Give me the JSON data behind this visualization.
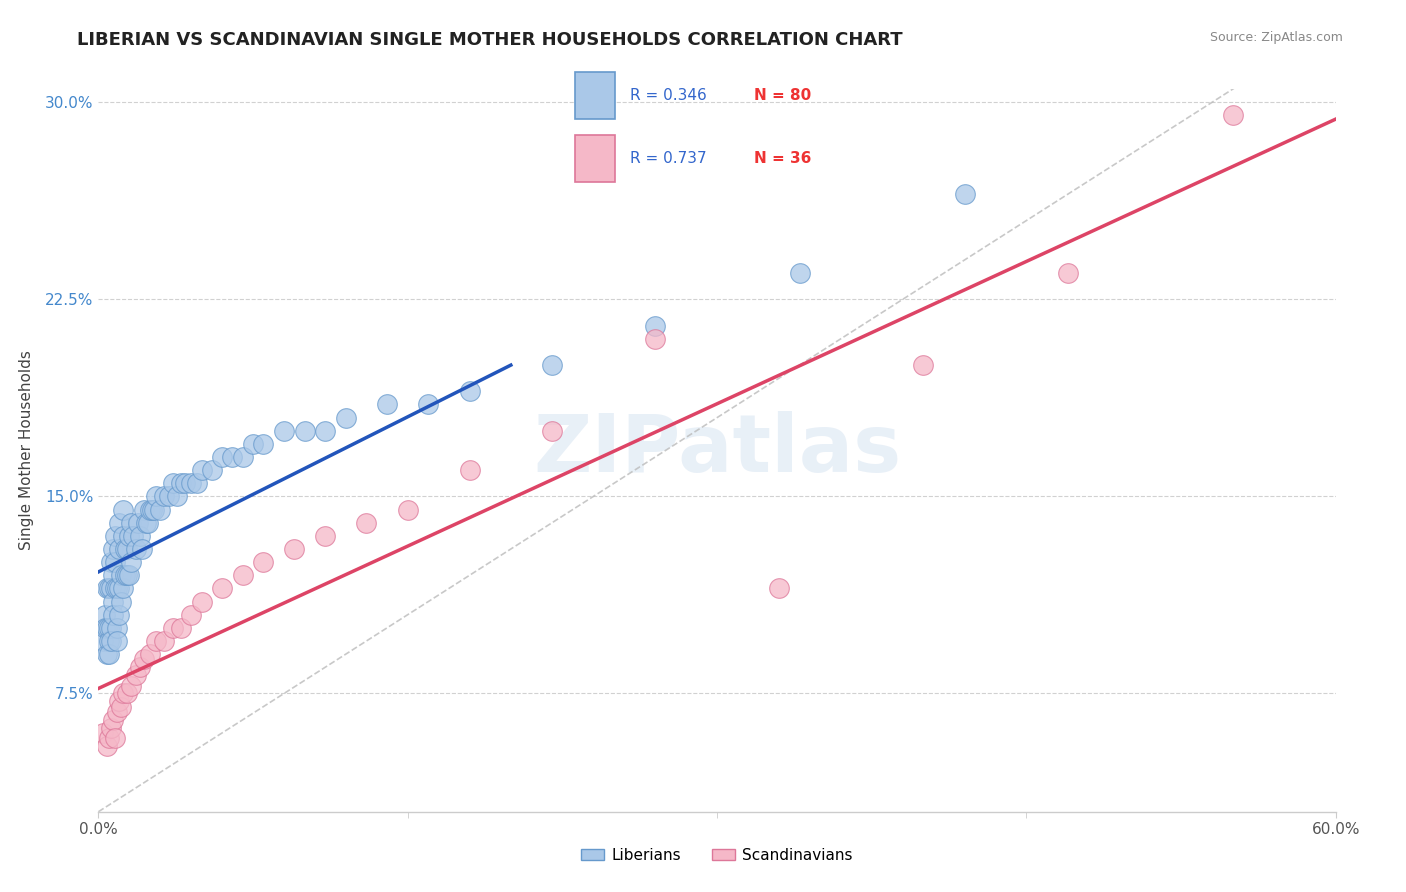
{
  "title": "LIBERIAN VS SCANDINAVIAN SINGLE MOTHER HOUSEHOLDS CORRELATION CHART",
  "source": "Source: ZipAtlas.com",
  "ylabel": "Single Mother Households",
  "xlim": [
    0.0,
    0.6
  ],
  "ylim": [
    0.03,
    0.305
  ],
  "xticks": [
    0.0,
    0.6
  ],
  "xtick_labels": [
    "0.0%",
    "60.0%"
  ],
  "yticks": [
    0.075,
    0.15,
    0.225,
    0.3
  ],
  "ytick_labels": [
    "7.5%",
    "15.0%",
    "22.5%",
    "30.0%"
  ],
  "grid_color": "#cccccc",
  "background_color": "#ffffff",
  "watermark": "ZIPatlas",
  "liberian_color": "#aac8e8",
  "liberian_edge": "#6699cc",
  "scandinavian_color": "#f5b8c8",
  "scandinavian_edge": "#dd7799",
  "liberian_line_color": "#2255bb",
  "scandinavian_line_color": "#dd4466",
  "R_liberian": 0.346,
  "N_liberian": 80,
  "R_scandinavian": 0.737,
  "N_scandinavian": 36,
  "liberian_x": [
    0.002,
    0.003,
    0.003,
    0.004,
    0.004,
    0.004,
    0.005,
    0.005,
    0.005,
    0.005,
    0.006,
    0.006,
    0.006,
    0.006,
    0.007,
    0.007,
    0.007,
    0.007,
    0.008,
    0.008,
    0.008,
    0.009,
    0.009,
    0.009,
    0.01,
    0.01,
    0.01,
    0.01,
    0.011,
    0.011,
    0.012,
    0.012,
    0.012,
    0.013,
    0.013,
    0.014,
    0.014,
    0.015,
    0.015,
    0.016,
    0.016,
    0.017,
    0.018,
    0.019,
    0.02,
    0.021,
    0.022,
    0.023,
    0.024,
    0.025,
    0.026,
    0.027,
    0.028,
    0.03,
    0.032,
    0.034,
    0.036,
    0.038,
    0.04,
    0.042,
    0.045,
    0.048,
    0.05,
    0.055,
    0.06,
    0.065,
    0.07,
    0.075,
    0.08,
    0.09,
    0.1,
    0.11,
    0.12,
    0.14,
    0.16,
    0.18,
    0.22,
    0.27,
    0.34,
    0.42
  ],
  "liberian_y": [
    0.095,
    0.105,
    0.1,
    0.115,
    0.1,
    0.09,
    0.115,
    0.1,
    0.095,
    0.09,
    0.125,
    0.115,
    0.1,
    0.095,
    0.13,
    0.12,
    0.11,
    0.105,
    0.135,
    0.125,
    0.115,
    0.115,
    0.1,
    0.095,
    0.14,
    0.13,
    0.115,
    0.105,
    0.12,
    0.11,
    0.145,
    0.135,
    0.115,
    0.13,
    0.12,
    0.13,
    0.12,
    0.135,
    0.12,
    0.14,
    0.125,
    0.135,
    0.13,
    0.14,
    0.135,
    0.13,
    0.145,
    0.14,
    0.14,
    0.145,
    0.145,
    0.145,
    0.15,
    0.145,
    0.15,
    0.15,
    0.155,
    0.15,
    0.155,
    0.155,
    0.155,
    0.155,
    0.16,
    0.16,
    0.165,
    0.165,
    0.165,
    0.17,
    0.17,
    0.175,
    0.175,
    0.175,
    0.18,
    0.185,
    0.185,
    0.19,
    0.2,
    0.215,
    0.235,
    0.265
  ],
  "scandinavian_x": [
    0.002,
    0.004,
    0.005,
    0.006,
    0.007,
    0.008,
    0.009,
    0.01,
    0.011,
    0.012,
    0.014,
    0.016,
    0.018,
    0.02,
    0.022,
    0.025,
    0.028,
    0.032,
    0.036,
    0.04,
    0.045,
    0.05,
    0.06,
    0.07,
    0.08,
    0.095,
    0.11,
    0.13,
    0.15,
    0.18,
    0.22,
    0.27,
    0.33,
    0.4,
    0.47,
    0.55
  ],
  "scandinavian_y": [
    0.06,
    0.055,
    0.058,
    0.062,
    0.065,
    0.058,
    0.068,
    0.072,
    0.07,
    0.075,
    0.075,
    0.078,
    0.082,
    0.085,
    0.088,
    0.09,
    0.095,
    0.095,
    0.1,
    0.1,
    0.105,
    0.11,
    0.115,
    0.12,
    0.125,
    0.13,
    0.135,
    0.14,
    0.145,
    0.16,
    0.175,
    0.21,
    0.115,
    0.2,
    0.235,
    0.295
  ],
  "ref_line_color": "#bbbbbb"
}
